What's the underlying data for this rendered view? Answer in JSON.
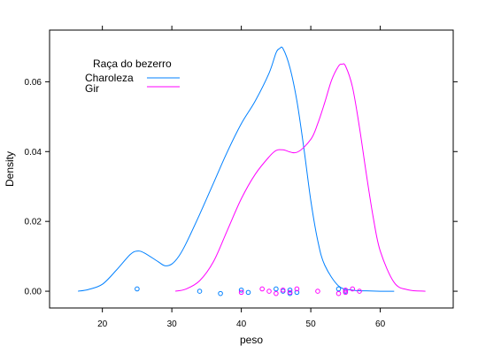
{
  "chart_data": {
    "type": "line",
    "xlabel": "peso",
    "ylabel": "Density",
    "xlim": [
      12.4,
      70.5
    ],
    "ylim": [
      -0.0048,
      0.0748
    ],
    "x_ticks": [
      20,
      30,
      40,
      50,
      60
    ],
    "y_ticks": [
      0.0,
      0.02,
      0.04,
      0.06
    ],
    "y_tick_labels": [
      "0.00",
      "0.02",
      "0.04",
      "0.06"
    ],
    "legend": {
      "title": "Raça do bezerro",
      "position": "top-left"
    },
    "series": [
      {
        "name": "Charoleza",
        "color": "#0080ff",
        "x": [
          16.5,
          18,
          20,
          22,
          24,
          25,
          26,
          28,
          29,
          30,
          31,
          32,
          34,
          36,
          38,
          40,
          42,
          44,
          45,
          45.5,
          46,
          47,
          48,
          49,
          50,
          51,
          52,
          54,
          56,
          58,
          60,
          62
        ],
        "y": [
          0.0,
          0.0005,
          0.002,
          0.006,
          0.0105,
          0.0115,
          0.011,
          0.0085,
          0.0073,
          0.0078,
          0.01,
          0.0135,
          0.022,
          0.031,
          0.04,
          0.048,
          0.0545,
          0.0625,
          0.0683,
          0.0695,
          0.0695,
          0.064,
          0.0545,
          0.041,
          0.026,
          0.0145,
          0.0075,
          0.0015,
          0.0003,
          0.0001,
          0.0,
          0.0
        ],
        "rug": [
          25,
          34,
          37,
          40,
          41,
          45,
          46,
          47,
          47,
          48,
          54,
          55
        ]
      },
      {
        "name": "Gir",
        "color": "#ff00ff",
        "x": [
          30.5,
          32,
          34,
          36,
          38,
          40,
          42,
          44,
          45,
          46,
          48,
          50,
          51,
          52,
          53,
          54,
          54.5,
          55,
          56,
          57,
          58,
          59,
          60,
          62,
          64,
          66.5
        ],
        "y": [
          0.0,
          0.0006,
          0.003,
          0.0085,
          0.0175,
          0.0265,
          0.0335,
          0.0385,
          0.0403,
          0.0405,
          0.0398,
          0.0435,
          0.048,
          0.054,
          0.0605,
          0.0645,
          0.065,
          0.0645,
          0.0585,
          0.047,
          0.0335,
          0.021,
          0.0115,
          0.0025,
          0.0004,
          0.0
        ],
        "rug": [
          40,
          43,
          44,
          45,
          46,
          47,
          48,
          51,
          54,
          55,
          55,
          56,
          57
        ]
      }
    ]
  }
}
